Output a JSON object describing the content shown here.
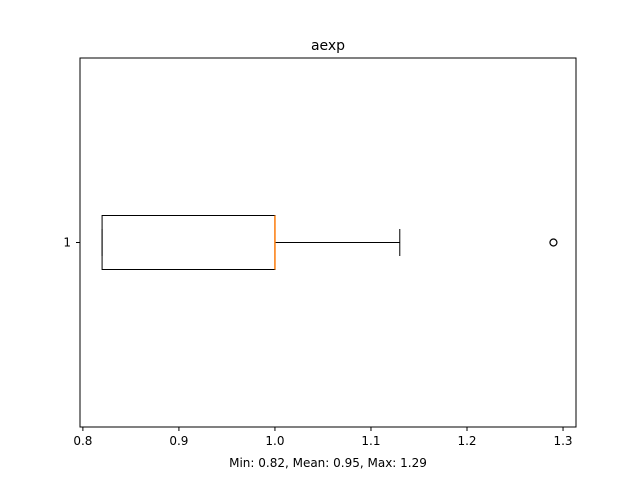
{
  "chart_data": {
    "type": "boxplot",
    "title": "aexp",
    "xlabel": "Min: 0.82, Mean: 0.95, Max: 1.29",
    "ylabel": "",
    "orientation": "horizontal",
    "xlim": [
      0.797,
      1.3135
    ],
    "xticks": [
      {
        "value": 0.8,
        "label": "0.8"
      },
      {
        "value": 0.9,
        "label": "0.9"
      },
      {
        "value": 1.0,
        "label": "1.0"
      },
      {
        "value": 1.1,
        "label": "1.1"
      },
      {
        "value": 1.2,
        "label": "1.2"
      },
      {
        "value": 1.3,
        "label": "1.3"
      }
    ],
    "yticks": [
      {
        "value": 1,
        "label": "1"
      }
    ],
    "boxes": [
      {
        "position": 1,
        "whisker_low": 0.82,
        "q1": 0.82,
        "median": 1.0,
        "q3": 1.0,
        "whisker_high": 1.13,
        "outliers": [
          1.29
        ]
      }
    ],
    "grid": false,
    "colors": {
      "box": "#000000",
      "median": "#ff7f0e",
      "outlier": "#000000"
    }
  }
}
